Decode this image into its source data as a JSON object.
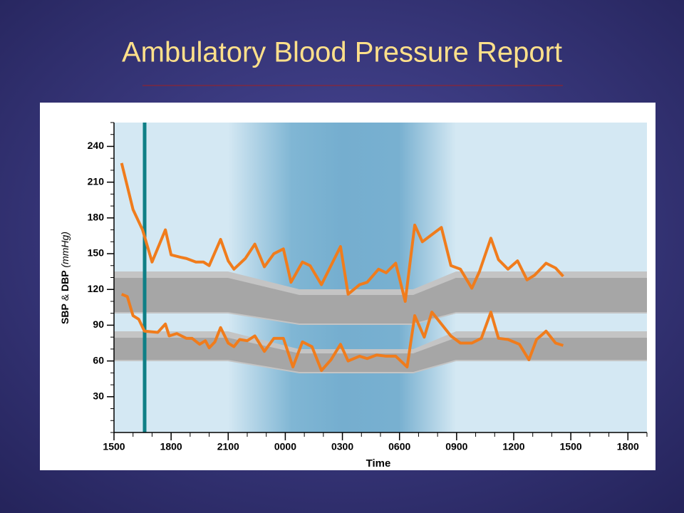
{
  "chart_data": {
    "type": "line",
    "title": "Ambulatory Blood Pressure Report",
    "xlabel": "Time",
    "ylabel": [
      "SBP",
      "&",
      "DBP",
      "(mmHg)"
    ],
    "xlim": [
      15,
      43
    ],
    "xticks": [
      {
        "value": 15,
        "label": "1500"
      },
      {
        "value": 18,
        "label": "1800"
      },
      {
        "value": 21,
        "label": "2100"
      },
      {
        "value": 24,
        "label": "0000"
      },
      {
        "value": 27,
        "label": "0300"
      },
      {
        "value": 30,
        "label": "0600"
      },
      {
        "value": 33,
        "label": "0900"
      },
      {
        "value": 36,
        "label": "1200"
      },
      {
        "value": 39,
        "label": "1500"
      },
      {
        "value": 42,
        "label": "1800"
      }
    ],
    "ylim": [
      0,
      260
    ],
    "yticks": [
      30,
      60,
      90,
      120,
      150,
      180,
      210,
      240
    ],
    "series": [
      {
        "color": "#f07c1c",
        "x": [
          15.4,
          16.0,
          16.5,
          17.0,
          17.7,
          18.0,
          18.5,
          18.8,
          19.3,
          19.7,
          20.0,
          20.6,
          21.0,
          21.3,
          21.9,
          22.4,
          22.9,
          23.4,
          23.9,
          24.3,
          24.9,
          25.3,
          25.9,
          26.4,
          26.9,
          27.3,
          27.9,
          28.3,
          28.9,
          29.3,
          29.8,
          30.3,
          30.8,
          31.2,
          31.7,
          32.2,
          32.7,
          33.2,
          33.8,
          34.2,
          34.8,
          35.2,
          35.7,
          36.2,
          36.7,
          37.1,
          37.7,
          38.2,
          38.6
        ],
        "values": [
          226,
          187,
          170,
          143,
          170,
          149,
          147,
          146,
          143,
          143,
          140,
          162,
          144,
          137,
          146,
          158,
          139,
          150,
          154,
          126,
          143,
          140,
          124,
          140,
          156,
          116,
          124,
          126,
          137,
          134,
          142,
          110,
          174,
          160,
          166,
          172,
          140,
          137,
          121,
          135,
          163,
          145,
          137,
          144,
          128,
          132,
          142,
          138,
          131
        ]
      },
      {
        "color": "#f07c1c",
        "x": [
          15.4,
          15.7,
          16.0,
          16.3,
          16.6,
          17.3,
          17.7,
          17.9,
          18.3,
          18.8,
          19.1,
          19.5,
          19.8,
          20.0,
          20.3,
          20.6,
          21.0,
          21.3,
          21.6,
          22.0,
          22.4,
          22.9,
          23.4,
          23.9,
          24.4,
          24.9,
          25.4,
          25.9,
          26.4,
          26.9,
          27.3,
          27.9,
          28.3,
          28.8,
          29.3,
          29.8,
          30.4,
          30.8,
          31.3,
          31.7,
          32.2,
          32.7,
          33.2,
          33.8,
          34.3,
          34.8,
          35.2,
          35.7,
          36.3,
          36.8,
          37.2,
          37.7,
          38.2,
          38.6
        ],
        "values": [
          116,
          114,
          98,
          95,
          85,
          84,
          91,
          81,
          83,
          79,
          79,
          74,
          77,
          71,
          76,
          88,
          75,
          72,
          78,
          77,
          81,
          68,
          79,
          79,
          55,
          76,
          72,
          52,
          61,
          74,
          60,
          64,
          62,
          65,
          64,
          64,
          55,
          98,
          80,
          101,
          91,
          81,
          75,
          75,
          79,
          101,
          79,
          78,
          74,
          61,
          78,
          85,
          75,
          73
        ]
      }
    ]
  }
}
